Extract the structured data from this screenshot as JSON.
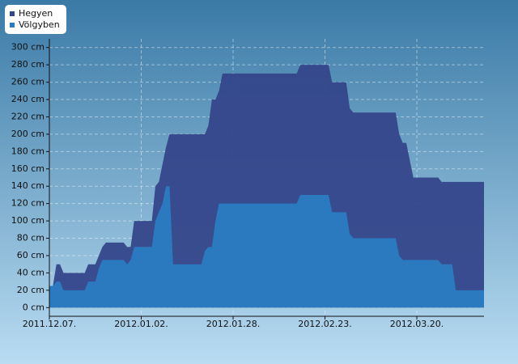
{
  "chart_data": {
    "type": "area",
    "x": [
      "2011.12.07.",
      "2011.12.08.",
      "2011.12.09.",
      "2011.12.10.",
      "2011.12.11.",
      "2011.12.17.",
      "2011.12.18.",
      "2011.12.20.",
      "2011.12.21.",
      "2011.12.22.",
      "2011.12.23.",
      "2011.12.28.",
      "2011.12.29.",
      "2011.12.30.",
      "2011.12.31.",
      "2012.01.05.",
      "2012.01.06.",
      "2012.01.07.",
      "2012.01.08.",
      "2012.01.09.",
      "2012.01.10.",
      "2012.01.11.",
      "2012.01.19.",
      "2012.01.20.",
      "2012.01.21.",
      "2012.01.22.",
      "2012.01.23.",
      "2012.01.24.",
      "2012.01.25.",
      "2012.02.15.",
      "2012.02.16.",
      "2012.02.24.",
      "2012.02.25.",
      "2012.02.29.",
      "2012.03.01.",
      "2012.03.02.",
      "2012.03.14.",
      "2012.03.15.",
      "2012.03.16.",
      "2012.03.17.",
      "2012.03.19.",
      "2012.03.26.",
      "2012.03.27.",
      "2012.03.30.",
      "2012.03.31.",
      "2012.04.08."
    ],
    "series": [
      {
        "name": "Hegyen",
        "color": "#34468a",
        "values": [
          25,
          25,
          50,
          50,
          40,
          40,
          50,
          50,
          60,
          70,
          75,
          75,
          70,
          70,
          100,
          100,
          140,
          145,
          165,
          185,
          200,
          200,
          200,
          200,
          210,
          240,
          240,
          250,
          270,
          270,
          280,
          280,
          260,
          260,
          230,
          225,
          225,
          200,
          190,
          190,
          150,
          150,
          145,
          145,
          145,
          145
        ]
      },
      {
        "name": "Völgyben",
        "color": "#2a7cc2",
        "values": [
          25,
          25,
          30,
          30,
          20,
          20,
          30,
          30,
          45,
          55,
          55,
          55,
          50,
          55,
          70,
          70,
          100,
          110,
          120,
          140,
          140,
          50,
          50,
          65,
          70,
          70,
          100,
          120,
          120,
          120,
          130,
          130,
          110,
          110,
          85,
          80,
          80,
          60,
          55,
          55,
          55,
          55,
          50,
          50,
          20,
          20
        ]
      }
    ],
    "xlim": [
      "2011.12.07.",
      "2012.04.08."
    ],
    "xticks": [
      "2011.12.07.",
      "2012.01.02.",
      "2012.01.28.",
      "2012.02.23.",
      "2012.03.20."
    ],
    "ylim": [
      -10,
      310
    ],
    "yticks": [
      {
        "value": 0,
        "label": "0 cm"
      },
      {
        "value": 20,
        "label": "20 cm"
      },
      {
        "value": 40,
        "label": "40 cm"
      },
      {
        "value": 60,
        "label": "60 cm"
      },
      {
        "value": 80,
        "label": "80 cm"
      },
      {
        "value": 100,
        "label": "100 cm"
      },
      {
        "value": 120,
        "label": "120 cm"
      },
      {
        "value": 140,
        "label": "140 cm"
      },
      {
        "value": 160,
        "label": "160 cm"
      },
      {
        "value": 180,
        "label": "180 cm"
      },
      {
        "value": 200,
        "label": "200 cm"
      },
      {
        "value": 220,
        "label": "220 cm"
      },
      {
        "value": 240,
        "label": "240 cm"
      },
      {
        "value": 260,
        "label": "260 cm"
      },
      {
        "value": 280,
        "label": "280 cm"
      },
      {
        "value": 300,
        "label": "300 cm"
      }
    ],
    "grid": true,
    "legend": "top-left"
  }
}
